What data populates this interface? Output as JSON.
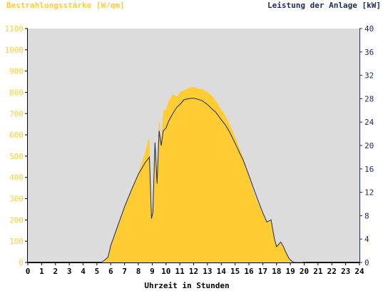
{
  "chart_data": {
    "type": "area",
    "y_left_label": "Bestrahlungsstärke [W/qm]",
    "y_right_label": "Leistung der Anlage [kW]",
    "xlabel": "Uhrzeit in Stunden",
    "xlim": [
      0,
      24
    ],
    "ylim_left": [
      0,
      1100
    ],
    "ylim_right": [
      0,
      40
    ],
    "x_ticks": [
      0,
      1,
      2,
      3,
      4,
      5,
      6,
      7,
      8,
      9,
      10,
      11,
      12,
      13,
      14,
      15,
      16,
      17,
      18,
      19,
      20,
      21,
      22,
      23,
      24
    ],
    "y_left_ticks": [
      0,
      100,
      200,
      300,
      400,
      500,
      600,
      700,
      800,
      900,
      1000,
      1100
    ],
    "y_right_ticks": [
      0,
      4,
      8,
      12,
      16,
      20,
      24,
      28,
      32,
      36,
      40
    ],
    "grid": false,
    "colors": {
      "plot_bg": "#dcdcdc",
      "irradiance_fill": "#ffcc33",
      "power_line": "#1a2b5c",
      "left_axis_text": "#ffcc33",
      "right_axis_text": "#1a2b5c"
    },
    "series": [
      {
        "name": "Bestrahlungsstärke",
        "axis": "left",
        "x": [
          5.3,
          5.5,
          5.8,
          6.0,
          6.5,
          7.0,
          7.5,
          8.0,
          8.5,
          8.8,
          8.95,
          9.05,
          9.2,
          9.35,
          9.5,
          9.65,
          9.8,
          10.0,
          10.2,
          10.5,
          10.8,
          11.0,
          11.3,
          11.6,
          12.0,
          12.3,
          12.6,
          13.0,
          13.3,
          13.6,
          14.0,
          14.3,
          14.6,
          15.0,
          15.3,
          15.6,
          16.0,
          16.3,
          16.6,
          17.0,
          17.3,
          17.6,
          17.85,
          18.0,
          18.3,
          18.5,
          18.7,
          18.9,
          19.1,
          19.3,
          19.5,
          19.7,
          19.9
        ],
        "y": [
          0,
          10,
          25,
          80,
          170,
          260,
          340,
          420,
          520,
          590,
          220,
          260,
          580,
          420,
          680,
          560,
          710,
          720,
          760,
          790,
          780,
          800,
          810,
          820,
          825,
          818,
          815,
          800,
          785,
          760,
          720,
          690,
          650,
          590,
          540,
          490,
          410,
          340,
          290,
          230,
          190,
          200,
          110,
          80,
          95,
          75,
          45,
          20,
          5,
          0,
          0,
          0,
          0
        ]
      },
      {
        "name": "Leistung der Anlage",
        "axis": "right",
        "x": [
          5.3,
          5.5,
          5.8,
          6.0,
          6.5,
          7.0,
          7.5,
          8.0,
          8.5,
          8.8,
          8.95,
          9.05,
          9.2,
          9.35,
          9.5,
          9.65,
          9.8,
          10.0,
          10.2,
          10.5,
          10.8,
          11.0,
          11.3,
          11.6,
          12.0,
          12.3,
          12.6,
          13.0,
          13.3,
          13.6,
          14.0,
          14.3,
          14.6,
          15.0,
          15.3,
          15.6,
          16.0,
          16.3,
          16.6,
          17.0,
          17.3,
          17.6,
          17.85,
          18.0,
          18.3,
          18.5,
          18.7,
          18.9,
          19.1,
          19.3,
          19.5,
          19.7,
          19.9
        ],
        "y": [
          0,
          0.3,
          0.9,
          2.9,
          6.2,
          9.5,
          12.4,
          15.1,
          17.1,
          18.0,
          7.5,
          8.5,
          20.5,
          13.5,
          22.5,
          20.0,
          22.5,
          23.0,
          24.2,
          25.5,
          26.6,
          27.0,
          27.8,
          28.0,
          28.1,
          27.9,
          27.7,
          27.0,
          26.3,
          25.7,
          24.4,
          23.5,
          22.3,
          20.4,
          18.9,
          17.4,
          14.9,
          12.9,
          11.0,
          8.5,
          6.9,
          7.3,
          4.0,
          2.7,
          3.5,
          2.7,
          1.6,
          0.7,
          0.2,
          0,
          0,
          0,
          0
        ]
      }
    ]
  }
}
